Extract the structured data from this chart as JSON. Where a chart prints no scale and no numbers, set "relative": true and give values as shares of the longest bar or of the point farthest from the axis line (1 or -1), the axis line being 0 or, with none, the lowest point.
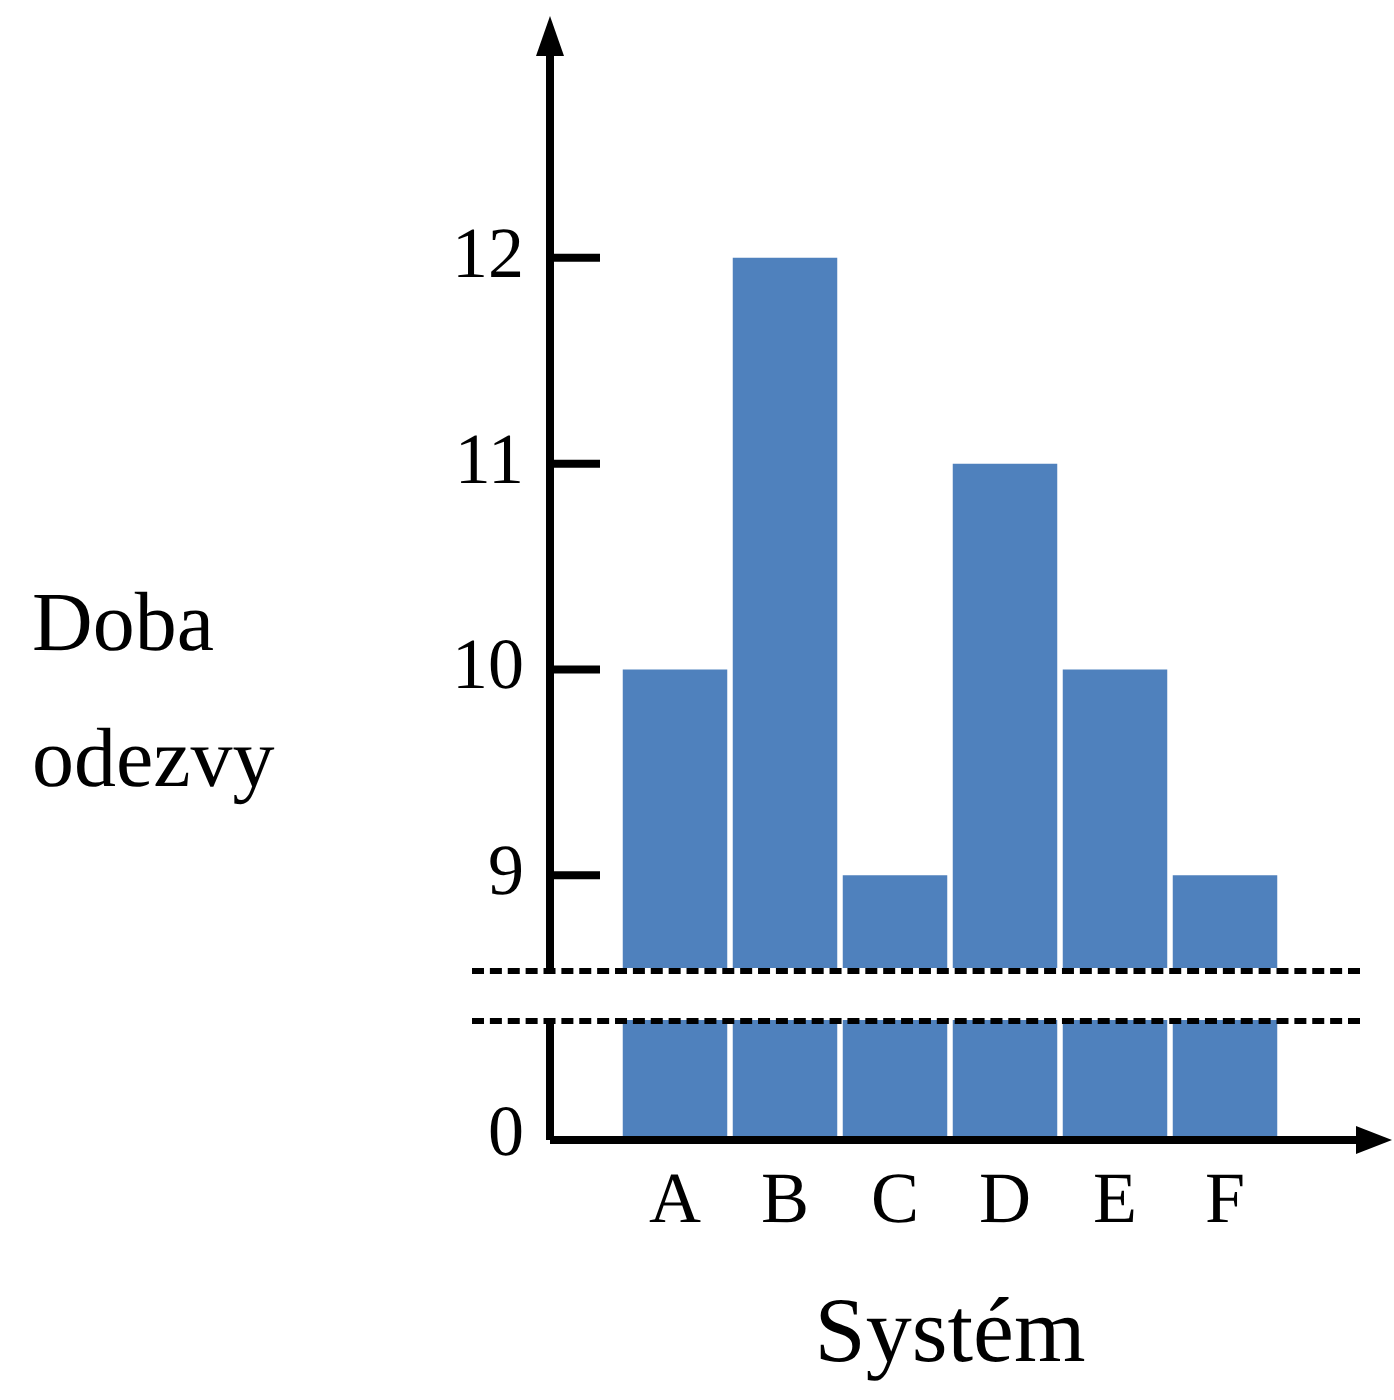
{
  "chart_data": [
    {
      "type": "bar",
      "ylabel": "Doba odezvy",
      "categories": [
        null,
        null,
        null,
        null,
        null,
        null
      ],
      "values": [
        10,
        12,
        9,
        11,
        10,
        9
      ],
      "color": "#4f81bd",
      "ylim": [
        8.55,
        13.0
      ],
      "yticks": [
        9,
        10,
        11,
        12
      ],
      "tick_labels": "y"
    },
    {
      "type": "bar",
      "relative": true,
      "xlabel": "Systém",
      "categories": [
        "A",
        "B",
        "C",
        "D",
        "E",
        "F"
      ],
      "values": [
        1,
        1,
        1,
        1,
        1,
        1
      ],
      "color": "#4f81bd",
      "annotations": [
        "0"
      ],
      "tick_labels": "x"
    }
  ]
}
